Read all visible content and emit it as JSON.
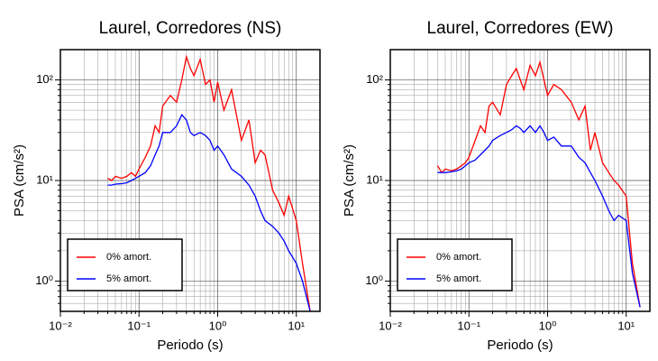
{
  "chart_data": [
    {
      "type": "line",
      "title": "Laurel, Corredores (NS)",
      "xlabel": "Periodo (s)",
      "ylabel": "PSA (cm/s²)",
      "xscale": "log",
      "yscale": "log",
      "grid": true,
      "legend": "lower left",
      "xlim": [
        0.01,
        20
      ],
      "ylim": [
        0.5,
        200
      ],
      "xticks": [
        {
          "value": 0.01,
          "label": "10⁻²"
        },
        {
          "value": 0.1,
          "label": "10⁻¹"
        },
        {
          "value": 1,
          "label": "10⁰"
        },
        {
          "value": 10,
          "label": "10¹"
        }
      ],
      "yticks": [
        {
          "value": 1,
          "label": "10⁰"
        },
        {
          "value": 10,
          "label": "10¹"
        },
        {
          "value": 100,
          "label": "10²"
        }
      ],
      "x": [
        0.04,
        0.045,
        0.05,
        0.06,
        0.07,
        0.08,
        0.09,
        0.1,
        0.12,
        0.14,
        0.16,
        0.18,
        0.2,
        0.25,
        0.3,
        0.35,
        0.4,
        0.45,
        0.5,
        0.6,
        0.7,
        0.8,
        0.9,
        1.0,
        1.2,
        1.5,
        2,
        2.5,
        3,
        3.5,
        4,
        5,
        6,
        7,
        8,
        10,
        12,
        15
      ],
      "series": [
        {
          "name": "0% amort.",
          "color": "#ff0000",
          "values": [
            10.5,
            10,
            11,
            10.5,
            11,
            12,
            11,
            13,
            17,
            22,
            35,
            30,
            55,
            70,
            60,
            100,
            170,
            130,
            110,
            160,
            90,
            100,
            60,
            95,
            50,
            80,
            25,
            40,
            15,
            20,
            18,
            8,
            6,
            4.5,
            7,
            4,
            1.5,
            0.5
          ]
        },
        {
          "name": "5% amort.",
          "color": "#0000ff",
          "values": [
            9,
            9,
            9.2,
            9.3,
            9.5,
            10,
            10.5,
            11,
            12,
            14,
            18,
            22,
            30,
            30,
            35,
            45,
            40,
            30,
            28,
            30,
            28,
            25,
            20,
            22,
            18,
            13,
            11,
            9,
            7,
            5,
            4,
            3.5,
            3,
            2.5,
            2,
            1.5,
            1,
            0.5
          ]
        }
      ]
    },
    {
      "type": "line",
      "title": "Laurel, Corredores (EW)",
      "xlabel": "Periodo (s)",
      "ylabel": "PSA (cm/s²)",
      "xscale": "log",
      "yscale": "log",
      "grid": true,
      "legend": "lower left",
      "xlim": [
        0.01,
        20
      ],
      "ylim": [
        0.5,
        200
      ],
      "xticks": [
        {
          "value": 0.01,
          "label": "10⁻²"
        },
        {
          "value": 0.1,
          "label": "10⁻¹"
        },
        {
          "value": 1,
          "label": "10⁰"
        },
        {
          "value": 10,
          "label": "10¹"
        }
      ],
      "yticks": [
        {
          "value": 1,
          "label": "10⁰"
        },
        {
          "value": 10,
          "label": "10¹"
        },
        {
          "value": 100,
          "label": "10²"
        }
      ],
      "x": [
        0.04,
        0.045,
        0.05,
        0.06,
        0.07,
        0.08,
        0.09,
        0.1,
        0.12,
        0.14,
        0.16,
        0.18,
        0.2,
        0.25,
        0.3,
        0.35,
        0.4,
        0.45,
        0.5,
        0.6,
        0.7,
        0.8,
        0.9,
        1.0,
        1.2,
        1.5,
        2,
        2.5,
        3,
        3.5,
        4,
        5,
        6,
        7,
        8,
        10,
        12,
        15
      ],
      "series": [
        {
          "name": "0% amort.",
          "color": "#ff0000",
          "values": [
            14,
            12,
            13,
            12.5,
            13,
            14,
            15,
            17,
            25,
            35,
            30,
            55,
            60,
            45,
            90,
            110,
            130,
            100,
            80,
            140,
            110,
            150,
            100,
            70,
            90,
            80,
            60,
            40,
            55,
            20,
            30,
            15,
            12,
            10,
            9,
            7,
            1.5,
            0.55
          ]
        },
        {
          "name": "5% amort.",
          "color": "#0000ff",
          "values": [
            12,
            12,
            12,
            12.2,
            12.5,
            13,
            14,
            15,
            16,
            18,
            20,
            22,
            25,
            28,
            30,
            32,
            35,
            33,
            30,
            35,
            30,
            35,
            30,
            25,
            27,
            22,
            22,
            17,
            15,
            12,
            10,
            7,
            5,
            4,
            4.5,
            4,
            1.2,
            0.55
          ]
        }
      ]
    }
  ]
}
